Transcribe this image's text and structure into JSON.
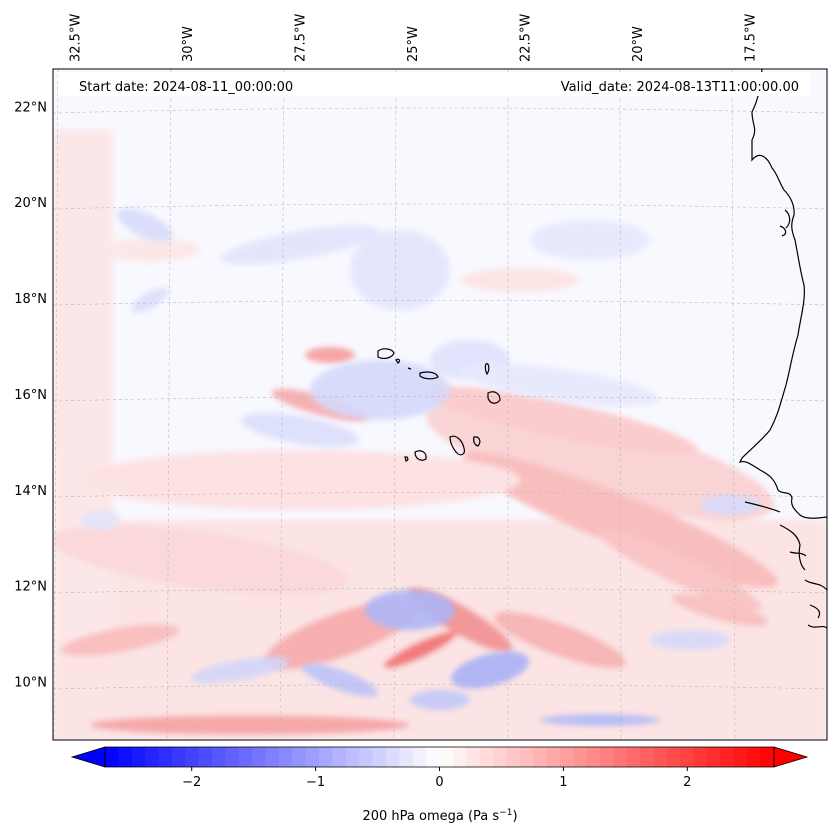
{
  "header": {
    "start_date": "Start date: 2024-08-11_00:00:00",
    "valid_date": "Valid_date: 2024-08-13T11:00:00.00"
  },
  "map": {
    "variable": "200 hPa omega",
    "lon_range": [
      -33.0,
      -15.8
    ],
    "lat_range": [
      8.8,
      22.8
    ],
    "gridlines": true,
    "lon_ticks": [
      {
        "value": -32.5,
        "label": "32.5°W"
      },
      {
        "value": -30.0,
        "label": "30°W"
      },
      {
        "value": -27.5,
        "label": "27.5°W"
      },
      {
        "value": -25.0,
        "label": "25°W"
      },
      {
        "value": -22.5,
        "label": "22.5°W"
      },
      {
        "value": -20.0,
        "label": "20°W"
      },
      {
        "value": -17.5,
        "label": "17.5°W"
      }
    ],
    "lat_ticks": [
      {
        "value": 22,
        "label": "22°N"
      },
      {
        "value": 20,
        "label": "20°N"
      },
      {
        "value": 18,
        "label": "18°N"
      },
      {
        "value": 16,
        "label": "16°N"
      },
      {
        "value": 14,
        "label": "14°N"
      },
      {
        "value": 12,
        "label": "12°N"
      },
      {
        "value": 10,
        "label": "10°N"
      }
    ]
  },
  "colorbar": {
    "label_prefix": "200 hPa omega (Pa s",
    "label_exp": "−1",
    "label_suffix": ")",
    "range": [
      -2.7,
      2.7
    ],
    "extend": "both",
    "colors": {
      "min": "#0000ff",
      "mid": "#ffffff",
      "max": "#ff0000"
    },
    "ticks": [
      {
        "value": -2,
        "label": "−2"
      },
      {
        "value": -1,
        "label": "−1"
      },
      {
        "value": 0,
        "label": "0"
      },
      {
        "value": 1,
        "label": "1"
      },
      {
        "value": 2,
        "label": "2"
      }
    ]
  }
}
